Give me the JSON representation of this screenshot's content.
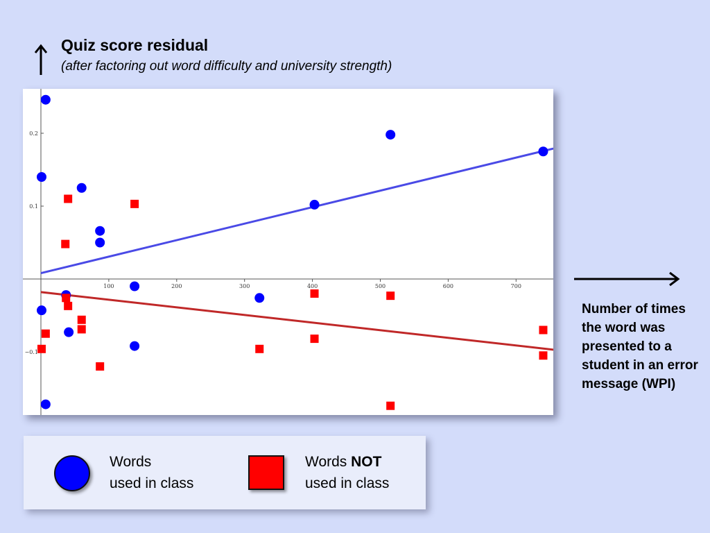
{
  "chart_data": {
    "type": "scatter",
    "title": "Quiz score residual",
    "subtitle": "(after factoring out word difficulty and university strength)",
    "xlabel": "Number of times the word was presented to a student in an error message (WPI)",
    "ylabel": "Quiz score residual",
    "xlim": [
      -20,
      755
    ],
    "ylim": [
      -0.185,
      0.258
    ],
    "x_ticks": [
      100,
      200,
      300,
      400,
      500,
      600,
      700
    ],
    "x_tick_labels": [
      "100",
      "200",
      "300",
      "400",
      "500",
      "600",
      "700"
    ],
    "y_ticks": [
      0.2,
      0.1,
      -0.1
    ],
    "y_tick_labels": [
      "0.2",
      "0.1",
      "−0.1"
    ],
    "grid": false,
    "series": [
      {
        "name": "Words used in class",
        "color": "#0000ff",
        "marker": "circle",
        "points": [
          {
            "x": 7,
            "y": 0.246
          },
          {
            "x": 1,
            "y": 0.14
          },
          {
            "x": 60,
            "y": 0.125
          },
          {
            "x": 87,
            "y": 0.066
          },
          {
            "x": 87,
            "y": 0.05
          },
          {
            "x": 403,
            "y": 0.102
          },
          {
            "x": 515,
            "y": 0.198
          },
          {
            "x": 740,
            "y": 0.175
          },
          {
            "x": 138,
            "y": -0.01
          },
          {
            "x": 37,
            "y": -0.022
          },
          {
            "x": 322,
            "y": -0.026
          },
          {
            "x": 1,
            "y": -0.043
          },
          {
            "x": 41,
            "y": -0.073
          },
          {
            "x": 138,
            "y": -0.092
          },
          {
            "x": 7,
            "y": -0.172
          }
        ],
        "fit": {
          "x": [
            0,
            755
          ],
          "y": [
            0.008,
            0.179
          ]
        }
      },
      {
        "name": "Words NOT used in class",
        "color": "#ff0000",
        "marker": "square",
        "points": [
          {
            "x": 40,
            "y": 0.11
          },
          {
            "x": 138,
            "y": 0.103
          },
          {
            "x": 36,
            "y": 0.048
          },
          {
            "x": 37,
            "y": -0.026
          },
          {
            "x": 40,
            "y": -0.037
          },
          {
            "x": 60,
            "y": -0.056
          },
          {
            "x": 60,
            "y": -0.069
          },
          {
            "x": 7,
            "y": -0.075
          },
          {
            "x": 1,
            "y": -0.096
          },
          {
            "x": 87,
            "y": -0.12
          },
          {
            "x": 322,
            "y": -0.096
          },
          {
            "x": 403,
            "y": -0.082
          },
          {
            "x": 403,
            "y": -0.02
          },
          {
            "x": 515,
            "y": -0.023
          },
          {
            "x": 515,
            "y": -0.174
          },
          {
            "x": 740,
            "y": -0.07
          },
          {
            "x": 740,
            "y": -0.105
          }
        ],
        "fit": {
          "x": [
            0,
            755
          ],
          "y": [
            -0.018,
            -0.097
          ]
        }
      }
    ],
    "legend": {
      "placement": "bottom",
      "items": [
        {
          "line1": "Words",
          "line2": "used in class"
        },
        {
          "line1_prefix": "Words ",
          "line1_bold": "NOT",
          "line2": "used in class"
        }
      ]
    }
  }
}
